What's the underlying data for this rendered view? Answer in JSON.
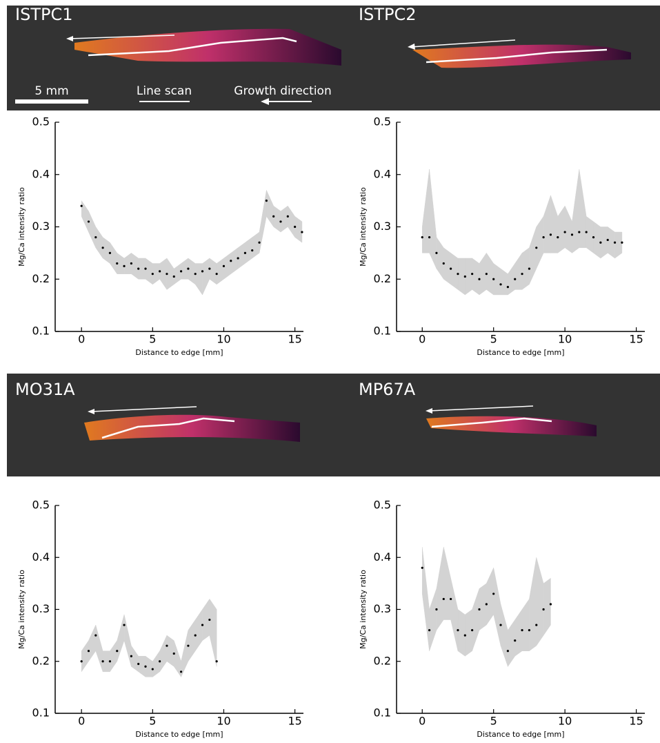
{
  "panel_legend": {
    "scale_bar": "5 mm",
    "line_scan": "Line scan",
    "growth_direction": "Growth direction"
  },
  "chart_data": [
    {
      "type": "scatter",
      "title": "ISTPC1",
      "x_label": "Distance to edge [mm]",
      "y_label": "Mg/Ca intensity ratio",
      "xlim": [
        -1.85,
        15.6
      ],
      "ylim": [
        0.1,
        0.5
      ],
      "xticks": [
        0,
        5,
        10,
        15
      ],
      "yticks": [
        0.1,
        0.2,
        0.3,
        0.4,
        0.5
      ],
      "color": "#000000",
      "band_color": "#d3d3d3",
      "x": [
        0,
        0.5,
        1,
        1.5,
        2,
        2.5,
        3,
        3.5,
        4,
        4.5,
        5,
        5.5,
        6,
        6.5,
        7,
        7.5,
        8,
        8.5,
        9,
        9.5,
        10,
        10.5,
        11,
        11.5,
        12,
        12.5,
        13,
        13.5,
        14,
        14.5,
        15,
        15.5
      ],
      "values": [
        0.34,
        0.31,
        0.28,
        0.26,
        0.25,
        0.23,
        0.225,
        0.23,
        0.22,
        0.22,
        0.21,
        0.215,
        0.21,
        0.205,
        0.215,
        0.22,
        0.21,
        0.215,
        0.22,
        0.21,
        0.225,
        0.235,
        0.24,
        0.25,
        0.255,
        0.27,
        0.35,
        0.32,
        0.31,
        0.32,
        0.3,
        0.29
      ],
      "band_low": [
        0.32,
        0.29,
        0.26,
        0.24,
        0.23,
        0.21,
        0.21,
        0.21,
        0.2,
        0.2,
        0.19,
        0.2,
        0.18,
        0.19,
        0.2,
        0.2,
        0.19,
        0.17,
        0.2,
        0.19,
        0.2,
        0.21,
        0.22,
        0.23,
        0.24,
        0.25,
        0.32,
        0.3,
        0.29,
        0.3,
        0.28,
        0.27
      ],
      "band_high": [
        0.35,
        0.33,
        0.3,
        0.28,
        0.27,
        0.25,
        0.24,
        0.25,
        0.24,
        0.24,
        0.23,
        0.23,
        0.24,
        0.22,
        0.23,
        0.24,
        0.23,
        0.23,
        0.24,
        0.23,
        0.24,
        0.25,
        0.26,
        0.27,
        0.28,
        0.29,
        0.37,
        0.34,
        0.33,
        0.34,
        0.32,
        0.31
      ]
    },
    {
      "type": "scatter",
      "title": "ISTPC2",
      "x_label": "Distance to edge [mm]",
      "y_label": "Mg/Ca intensity ratio",
      "xlim": [
        -1.8,
        15.6
      ],
      "ylim": [
        0.1,
        0.5
      ],
      "xticks": [
        0,
        5,
        10,
        15
      ],
      "yticks": [
        0.1,
        0.2,
        0.3,
        0.4,
        0.5
      ],
      "color": "#000000",
      "band_color": "#d3d3d3",
      "x": [
        0,
        0.5,
        1,
        1.5,
        2,
        2.5,
        3,
        3.5,
        4,
        4.5,
        5,
        5.5,
        6,
        6.5,
        7,
        7.5,
        8,
        8.5,
        9,
        9.5,
        10,
        10.5,
        11,
        11.5,
        12,
        12.5,
        13,
        13.5,
        14
      ],
      "values": [
        0.28,
        0.28,
        0.25,
        0.23,
        0.22,
        0.21,
        0.205,
        0.21,
        0.2,
        0.21,
        0.2,
        0.19,
        0.185,
        0.2,
        0.21,
        0.22,
        0.26,
        0.28,
        0.285,
        0.28,
        0.29,
        0.285,
        0.29,
        0.29,
        0.28,
        0.27,
        0.275,
        0.27,
        0.27
      ],
      "band_low": [
        0.25,
        0.25,
        0.22,
        0.2,
        0.19,
        0.18,
        0.17,
        0.18,
        0.17,
        0.18,
        0.17,
        0.17,
        0.17,
        0.18,
        0.18,
        0.19,
        0.22,
        0.25,
        0.25,
        0.25,
        0.26,
        0.25,
        0.26,
        0.26,
        0.25,
        0.24,
        0.25,
        0.24,
        0.25
      ],
      "band_high": [
        0.3,
        0.41,
        0.28,
        0.26,
        0.25,
        0.24,
        0.24,
        0.24,
        0.23,
        0.25,
        0.23,
        0.22,
        0.21,
        0.23,
        0.25,
        0.26,
        0.3,
        0.32,
        0.36,
        0.32,
        0.34,
        0.31,
        0.41,
        0.32,
        0.31,
        0.3,
        0.3,
        0.29,
        0.29
      ]
    },
    {
      "type": "scatter",
      "title": "MO31A",
      "x_label": "Distance to edge [mm]",
      "y_label": "Mg/Ca intensity ratio",
      "xlim": [
        -1.85,
        15.6
      ],
      "ylim": [
        0.1,
        0.5
      ],
      "xticks": [
        0,
        5,
        10,
        15
      ],
      "yticks": [
        0.1,
        0.2,
        0.3,
        0.4,
        0.5
      ],
      "color": "#000000",
      "band_color": "#d3d3d3",
      "x": [
        0,
        0.5,
        1,
        1.5,
        2,
        2.5,
        3,
        3.5,
        4,
        4.5,
        5,
        5.5,
        6,
        6.5,
        7,
        7.5,
        8,
        8.5,
        9,
        9.5
      ],
      "values": [
        0.2,
        0.22,
        0.25,
        0.2,
        0.2,
        0.22,
        0.27,
        0.21,
        0.195,
        0.19,
        0.185,
        0.2,
        0.23,
        0.215,
        0.18,
        0.23,
        0.25,
        0.27,
        0.28,
        0.2
      ],
      "band_low": [
        0.18,
        0.2,
        0.22,
        0.18,
        0.18,
        0.2,
        0.24,
        0.19,
        0.18,
        0.17,
        0.17,
        0.18,
        0.2,
        0.19,
        0.17,
        0.2,
        0.22,
        0.24,
        0.25,
        0.19
      ],
      "band_high": [
        0.22,
        0.24,
        0.27,
        0.22,
        0.22,
        0.24,
        0.29,
        0.23,
        0.21,
        0.21,
        0.2,
        0.22,
        0.25,
        0.24,
        0.2,
        0.26,
        0.28,
        0.3,
        0.32,
        0.3
      ]
    },
    {
      "type": "scatter",
      "title": "MP67A",
      "x_label": "Distance to edge [mm]",
      "y_label": "Mg/Ca intensity ratio",
      "xlim": [
        -1.8,
        15.6
      ],
      "ylim": [
        0.1,
        0.5
      ],
      "xticks": [
        0,
        5,
        10,
        15
      ],
      "yticks": [
        0.1,
        0.2,
        0.3,
        0.4,
        0.5
      ],
      "color": "#000000",
      "band_color": "#d3d3d3",
      "x": [
        0,
        0.5,
        1,
        1.5,
        2,
        2.5,
        3,
        3.5,
        4,
        4.5,
        5,
        5.5,
        6,
        6.5,
        7,
        7.5,
        8,
        8.5,
        9
      ],
      "values": [
        0.38,
        0.26,
        0.3,
        0.32,
        0.32,
        0.26,
        0.25,
        0.26,
        0.3,
        0.31,
        0.33,
        0.27,
        0.22,
        0.24,
        0.26,
        0.26,
        0.27,
        0.3,
        0.31
      ],
      "band_low": [
        0.33,
        0.22,
        0.26,
        0.28,
        0.28,
        0.22,
        0.21,
        0.22,
        0.26,
        0.27,
        0.29,
        0.23,
        0.19,
        0.21,
        0.22,
        0.22,
        0.23,
        0.25,
        0.27
      ],
      "band_high": [
        0.42,
        0.3,
        0.34,
        0.42,
        0.36,
        0.3,
        0.29,
        0.3,
        0.34,
        0.35,
        0.38,
        0.31,
        0.26,
        0.28,
        0.3,
        0.32,
        0.4,
        0.35,
        0.36
      ]
    }
  ]
}
